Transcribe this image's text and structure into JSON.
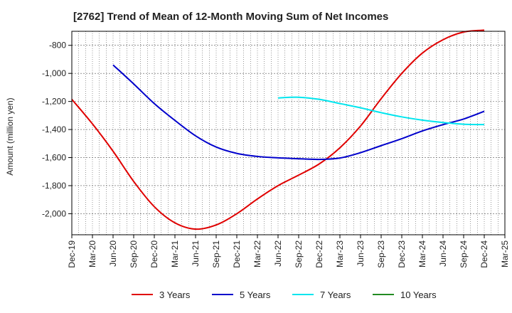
{
  "chart_data": {
    "type": "line",
    "title": "[2762]  Trend of Mean of 12-Month Moving Sum of Net Incomes",
    "ylabel": "Amount (million yen)",
    "xlabel": "",
    "ylim": [
      -2150,
      -700
    ],
    "yticks": [
      -800,
      -1000,
      -1200,
      -1400,
      -1600,
      -1800,
      -2000
    ],
    "ytick_labels": [
      "-800",
      "-1,000",
      "-1,200",
      "-1,400",
      "-1,600",
      "-1,800",
      "-2,000"
    ],
    "x_tick_labels": [
      "Dec-19",
      "Mar-20",
      "Jun-20",
      "Sep-20",
      "Dec-20",
      "Mar-21",
      "Jun-21",
      "Sep-21",
      "Dec-21",
      "Mar-22",
      "Jun-22",
      "Sep-22",
      "Dec-22",
      "Mar-23",
      "Jun-23",
      "Sep-23",
      "Dec-23",
      "Mar-24",
      "Jun-24",
      "Sep-24",
      "Dec-24",
      "Mar-25"
    ],
    "grid": true,
    "legend_position": "bottom",
    "series": [
      {
        "name": "3 Years",
        "color": "#e00000",
        "points": [
          [
            "Dec-19",
            -1185
          ],
          [
            "Mar-20",
            -1360
          ],
          [
            "Jun-20",
            -1555
          ],
          [
            "Sep-20",
            -1770
          ],
          [
            "Dec-20",
            -1950
          ],
          [
            "Mar-21",
            -2065
          ],
          [
            "Jun-21",
            -2110
          ],
          [
            "Sep-21",
            -2080
          ],
          [
            "Dec-21",
            -2000
          ],
          [
            "Mar-22",
            -1895
          ],
          [
            "Jun-22",
            -1800
          ],
          [
            "Sep-22",
            -1725
          ],
          [
            "Dec-22",
            -1645
          ],
          [
            "Mar-23",
            -1530
          ],
          [
            "Jun-23",
            -1375
          ],
          [
            "Sep-23",
            -1180
          ],
          [
            "Dec-23",
            -1000
          ],
          [
            "Mar-24",
            -855
          ],
          [
            "Jun-24",
            -760
          ],
          [
            "Sep-24",
            -705
          ],
          [
            "Dec-24",
            -692
          ]
        ]
      },
      {
        "name": "5 Years",
        "color": "#0000cc",
        "points": [
          [
            "Jun-20",
            -940
          ],
          [
            "Sep-20",
            -1075
          ],
          [
            "Dec-20",
            -1215
          ],
          [
            "Mar-21",
            -1335
          ],
          [
            "Jun-21",
            -1445
          ],
          [
            "Sep-21",
            -1525
          ],
          [
            "Dec-21",
            -1570
          ],
          [
            "Mar-22",
            -1592
          ],
          [
            "Jun-22",
            -1602
          ],
          [
            "Sep-22",
            -1608
          ],
          [
            "Dec-22",
            -1613
          ],
          [
            "Mar-23",
            -1603
          ],
          [
            "Jun-23",
            -1565
          ],
          [
            "Sep-23",
            -1515
          ],
          [
            "Dec-23",
            -1465
          ],
          [
            "Mar-24",
            -1410
          ],
          [
            "Jun-24",
            -1365
          ],
          [
            "Sep-24",
            -1325
          ],
          [
            "Dec-24",
            -1270
          ]
        ]
      },
      {
        "name": "7 Years",
        "color": "#00e5ee",
        "points": [
          [
            "Jun-22",
            -1175
          ],
          [
            "Sep-22",
            -1170
          ],
          [
            "Dec-22",
            -1185
          ],
          [
            "Mar-23",
            -1215
          ],
          [
            "Jun-23",
            -1245
          ],
          [
            "Sep-23",
            -1280
          ],
          [
            "Dec-23",
            -1310
          ],
          [
            "Mar-24",
            -1333
          ],
          [
            "Jun-24",
            -1350
          ],
          [
            "Sep-24",
            -1362
          ],
          [
            "Dec-24",
            -1365
          ]
        ]
      },
      {
        "name": "10 Years",
        "color": "#228b22",
        "points": []
      }
    ]
  }
}
